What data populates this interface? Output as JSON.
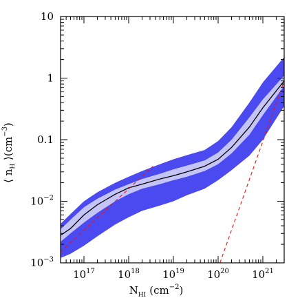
{
  "chart_data": {
    "type": "area",
    "title": "",
    "x_scale": "log",
    "y_scale": "log",
    "xlim": [
      3e+16,
      3e+21
    ],
    "ylim": [
      0.001,
      10
    ],
    "xlabel": {
      "base": "N",
      "sub": "HI",
      "unit": "(cm",
      "exp": "−2",
      "close": ")"
    },
    "ylabel": {
      "open": "⟨ n",
      "sub": "H",
      "close": " ⟩(cm",
      "exp": "−3",
      "end": ")"
    },
    "x_ticks": [
      {
        "value": 1e+17,
        "base": "10",
        "exp": "17"
      },
      {
        "value": 1e+18,
        "base": "10",
        "exp": "18"
      },
      {
        "value": 1e+19,
        "base": "10",
        "exp": "19"
      },
      {
        "value": 1e+20,
        "base": "10",
        "exp": "20"
      },
      {
        "value": 1e+21,
        "base": "10",
        "exp": "21"
      }
    ],
    "y_ticks": [
      {
        "value": 10,
        "text": "10"
      },
      {
        "value": 1,
        "text": "1"
      },
      {
        "value": 0.1,
        "text": "0.1"
      },
      {
        "value": 0.01,
        "base": "10",
        "exp": "−2"
      },
      {
        "value": 0.001,
        "base": "10",
        "exp": "−3"
      }
    ],
    "grid": false,
    "colors": {
      "outer_band": "#4a4af0",
      "inner_band": "#c4c4f6",
      "median": "#000000",
      "reference": "#ee1111"
    },
    "x": [
      3e+16,
      5e+16,
      1e+17,
      2e+17,
      5e+17,
      1e+18,
      2e+18,
      5e+18,
      1e+19,
      2e+19,
      5e+19,
      1e+20,
      2e+20,
      5e+20,
      1e+21,
      3e+21
    ],
    "outer_band": {
      "lower": [
        0.0012,
        0.0014,
        0.0019,
        0.0027,
        0.0042,
        0.0055,
        0.007,
        0.0085,
        0.01,
        0.0125,
        0.016,
        0.022,
        0.032,
        0.055,
        0.1,
        0.35
      ],
      "upper": [
        0.0043,
        0.0062,
        0.01,
        0.014,
        0.02,
        0.025,
        0.031,
        0.04,
        0.048,
        0.056,
        0.068,
        0.095,
        0.16,
        0.4,
        0.85,
        2.2
      ]
    },
    "inner_band": {
      "lower": [
        0.0022,
        0.003,
        0.0045,
        0.0065,
        0.01,
        0.013,
        0.016,
        0.019,
        0.022,
        0.025,
        0.031,
        0.04,
        0.06,
        0.12,
        0.25,
        0.75
      ],
      "upper": [
        0.0035,
        0.005,
        0.008,
        0.011,
        0.0155,
        0.019,
        0.023,
        0.028,
        0.033,
        0.038,
        0.046,
        0.062,
        0.1,
        0.23,
        0.45,
        1.1
      ]
    },
    "median": [
      0.0028,
      0.0036,
      0.006,
      0.0088,
      0.013,
      0.0165,
      0.019,
      0.023,
      0.026,
      0.03,
      0.037,
      0.048,
      0.075,
      0.16,
      0.33,
      0.9
    ],
    "reference_lines": [
      {
        "style": "dashed",
        "x": [
          3e+16,
          3.5e+18
        ],
        "y": [
          0.0015,
          0.037
        ]
      },
      {
        "style": "dashed",
        "x": [
          1.1e+20,
          3e+21
        ],
        "y": [
          0.001,
          0.9
        ]
      }
    ]
  }
}
